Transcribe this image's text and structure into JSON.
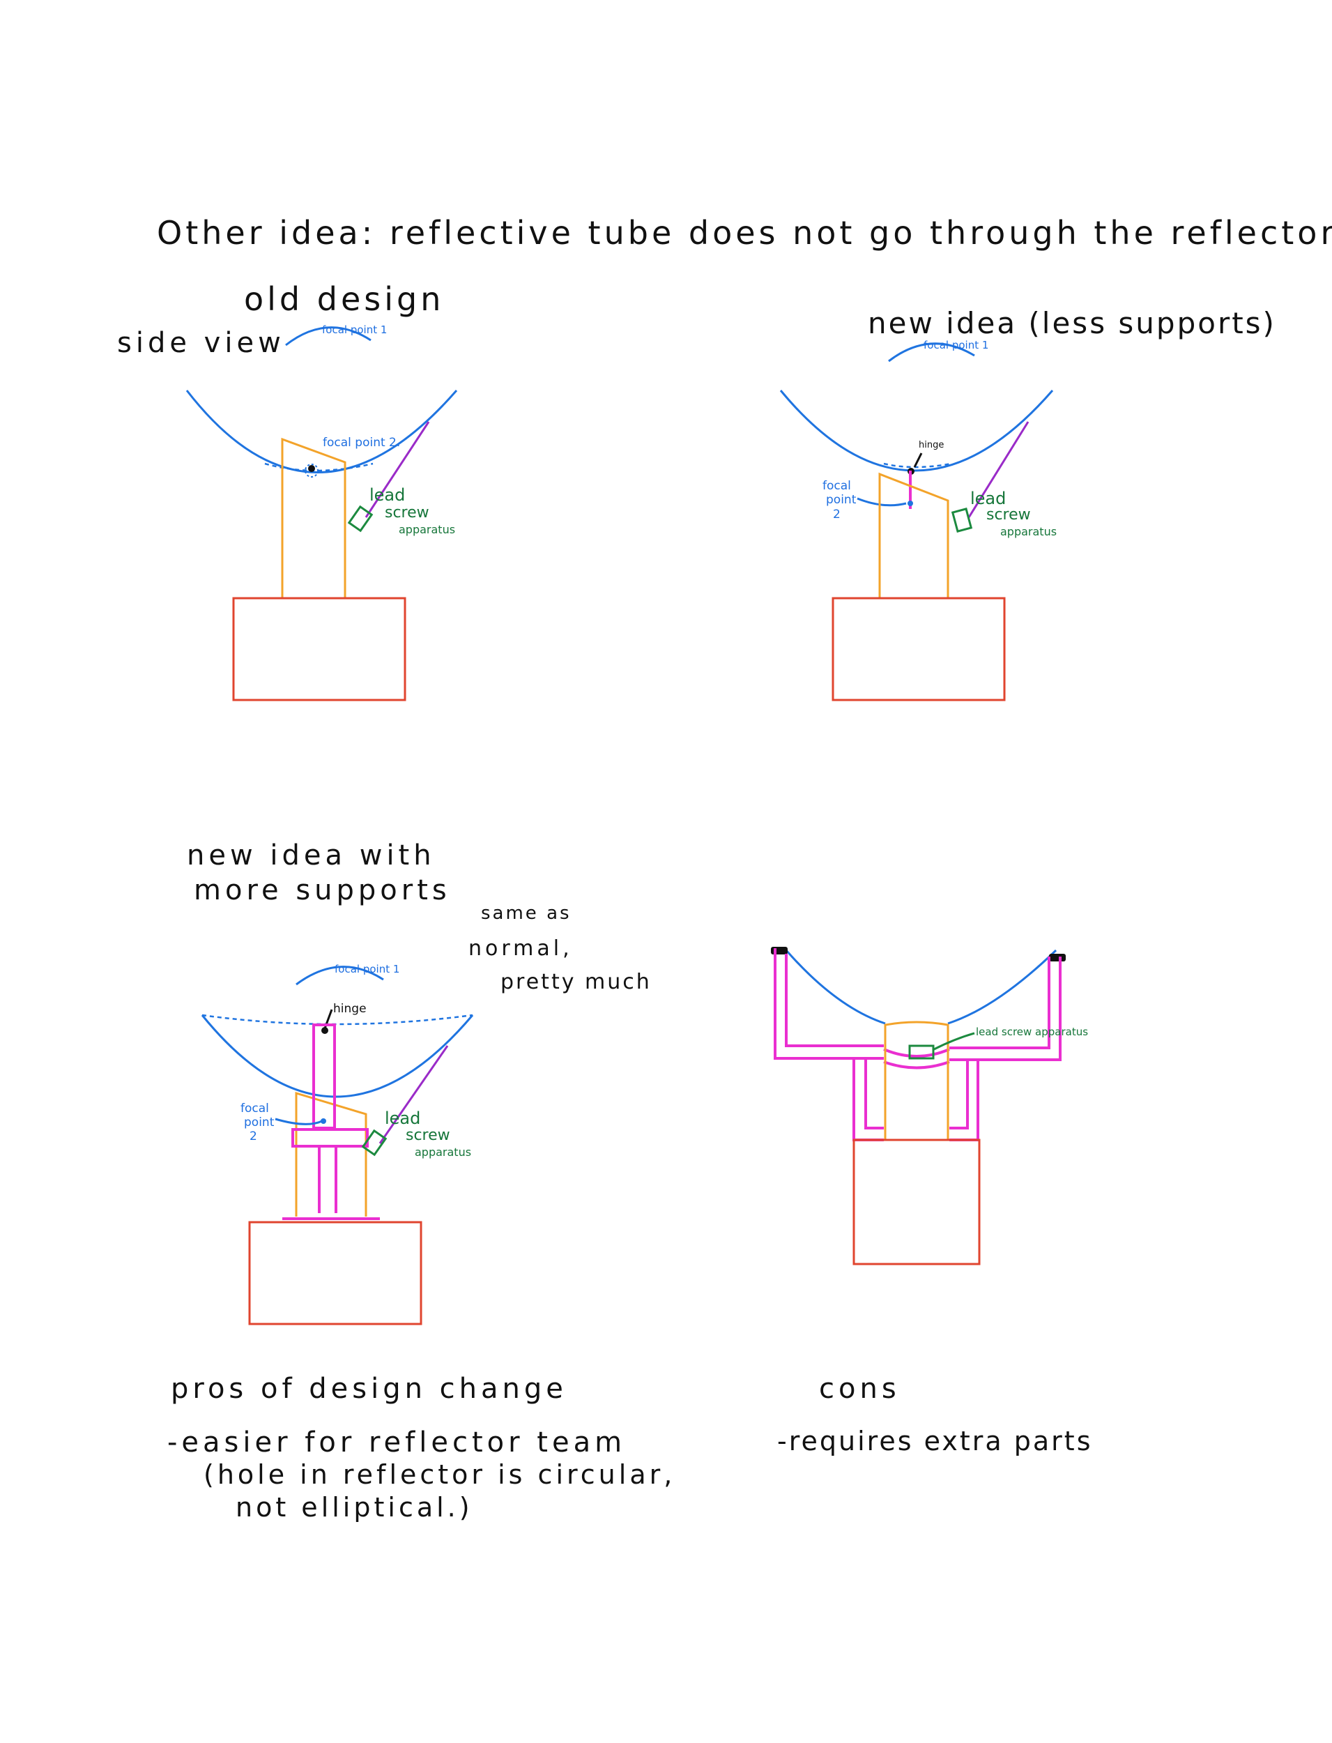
{
  "title": "Other idea: reflective tube does not go through the reflector",
  "old_design": {
    "heading": "old design",
    "view_label": "side view",
    "focal_point_1": "focal point 1",
    "focal_point_2": "focal point 2.",
    "lead_screw": [
      "lead",
      "screw",
      "apparatus"
    ]
  },
  "new_idea": {
    "heading": "new idea (less supports)",
    "focal_point_1": "focal point 1",
    "hinge": "hinge",
    "focal_point_2": [
      "focal",
      "point",
      "2"
    ],
    "lead_screw": [
      "lead",
      "screw",
      "apparatus"
    ]
  },
  "new_idea_more": {
    "heading": [
      "new idea with",
      "more supports"
    ],
    "note": [
      "same as",
      "normal,",
      "pretty much"
    ],
    "focal_point_1": "focal point 1",
    "hinge": "hinge",
    "focal_point_2": [
      "focal",
      "point",
      "2"
    ],
    "lead_screw": [
      "lead",
      "screw",
      "apparatus"
    ]
  },
  "front_view": {
    "lead_screw": "lead screw apparatus"
  },
  "pros": {
    "heading": "pros of design change",
    "items": [
      "-easier for reflector team",
      "(hole in reflector is circular,",
      "not elliptical.)"
    ]
  },
  "cons": {
    "heading": "cons",
    "items": [
      "-requires extra parts"
    ]
  },
  "colors": {
    "reflector": "#1f74e0",
    "tube": "#f3a32a",
    "base": "#e0452f",
    "rod": "#9a2bc8",
    "lead_screw": "#1c8a3f",
    "supports": "#ea2fd0"
  }
}
